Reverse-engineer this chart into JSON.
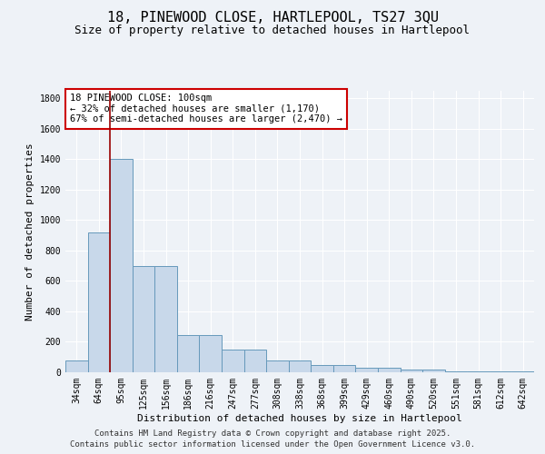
{
  "title": "18, PINEWOOD CLOSE, HARTLEPOOL, TS27 3QU",
  "subtitle": "Size of property relative to detached houses in Hartlepool",
  "xlabel": "Distribution of detached houses by size in Hartlepool",
  "ylabel": "Number of detached properties",
  "bar_color": "#c8d8ea",
  "bar_edge_color": "#6699bb",
  "background_color": "#eef2f7",
  "grid_color": "#ffffff",
  "categories": [
    "34sqm",
    "64sqm",
    "95sqm",
    "125sqm",
    "156sqm",
    "186sqm",
    "216sqm",
    "247sqm",
    "277sqm",
    "308sqm",
    "338sqm",
    "368sqm",
    "399sqm",
    "429sqm",
    "460sqm",
    "490sqm",
    "520sqm",
    "551sqm",
    "581sqm",
    "612sqm",
    "642sqm"
  ],
  "values": [
    80,
    920,
    1400,
    700,
    700,
    245,
    245,
    150,
    150,
    80,
    80,
    50,
    50,
    30,
    30,
    20,
    20,
    8,
    8,
    4,
    4
  ],
  "property_line_color": "#990000",
  "annotation_text": "18 PINEWOOD CLOSE: 100sqm\n← 32% of detached houses are smaller (1,170)\n67% of semi-detached houses are larger (2,470) →",
  "annotation_box_facecolor": "#ffffff",
  "annotation_box_edgecolor": "#cc0000",
  "ylim": [
    0,
    1850
  ],
  "yticks": [
    0,
    200,
    400,
    600,
    800,
    1000,
    1200,
    1400,
    1600,
    1800
  ],
  "footer_line1": "Contains HM Land Registry data © Crown copyright and database right 2025.",
  "footer_line2": "Contains public sector information licensed under the Open Government Licence v3.0.",
  "title_fontsize": 11,
  "subtitle_fontsize": 9,
  "tick_fontsize": 7,
  "ylabel_fontsize": 8,
  "xlabel_fontsize": 8,
  "annotation_fontsize": 7.5,
  "footer_fontsize": 6.5
}
